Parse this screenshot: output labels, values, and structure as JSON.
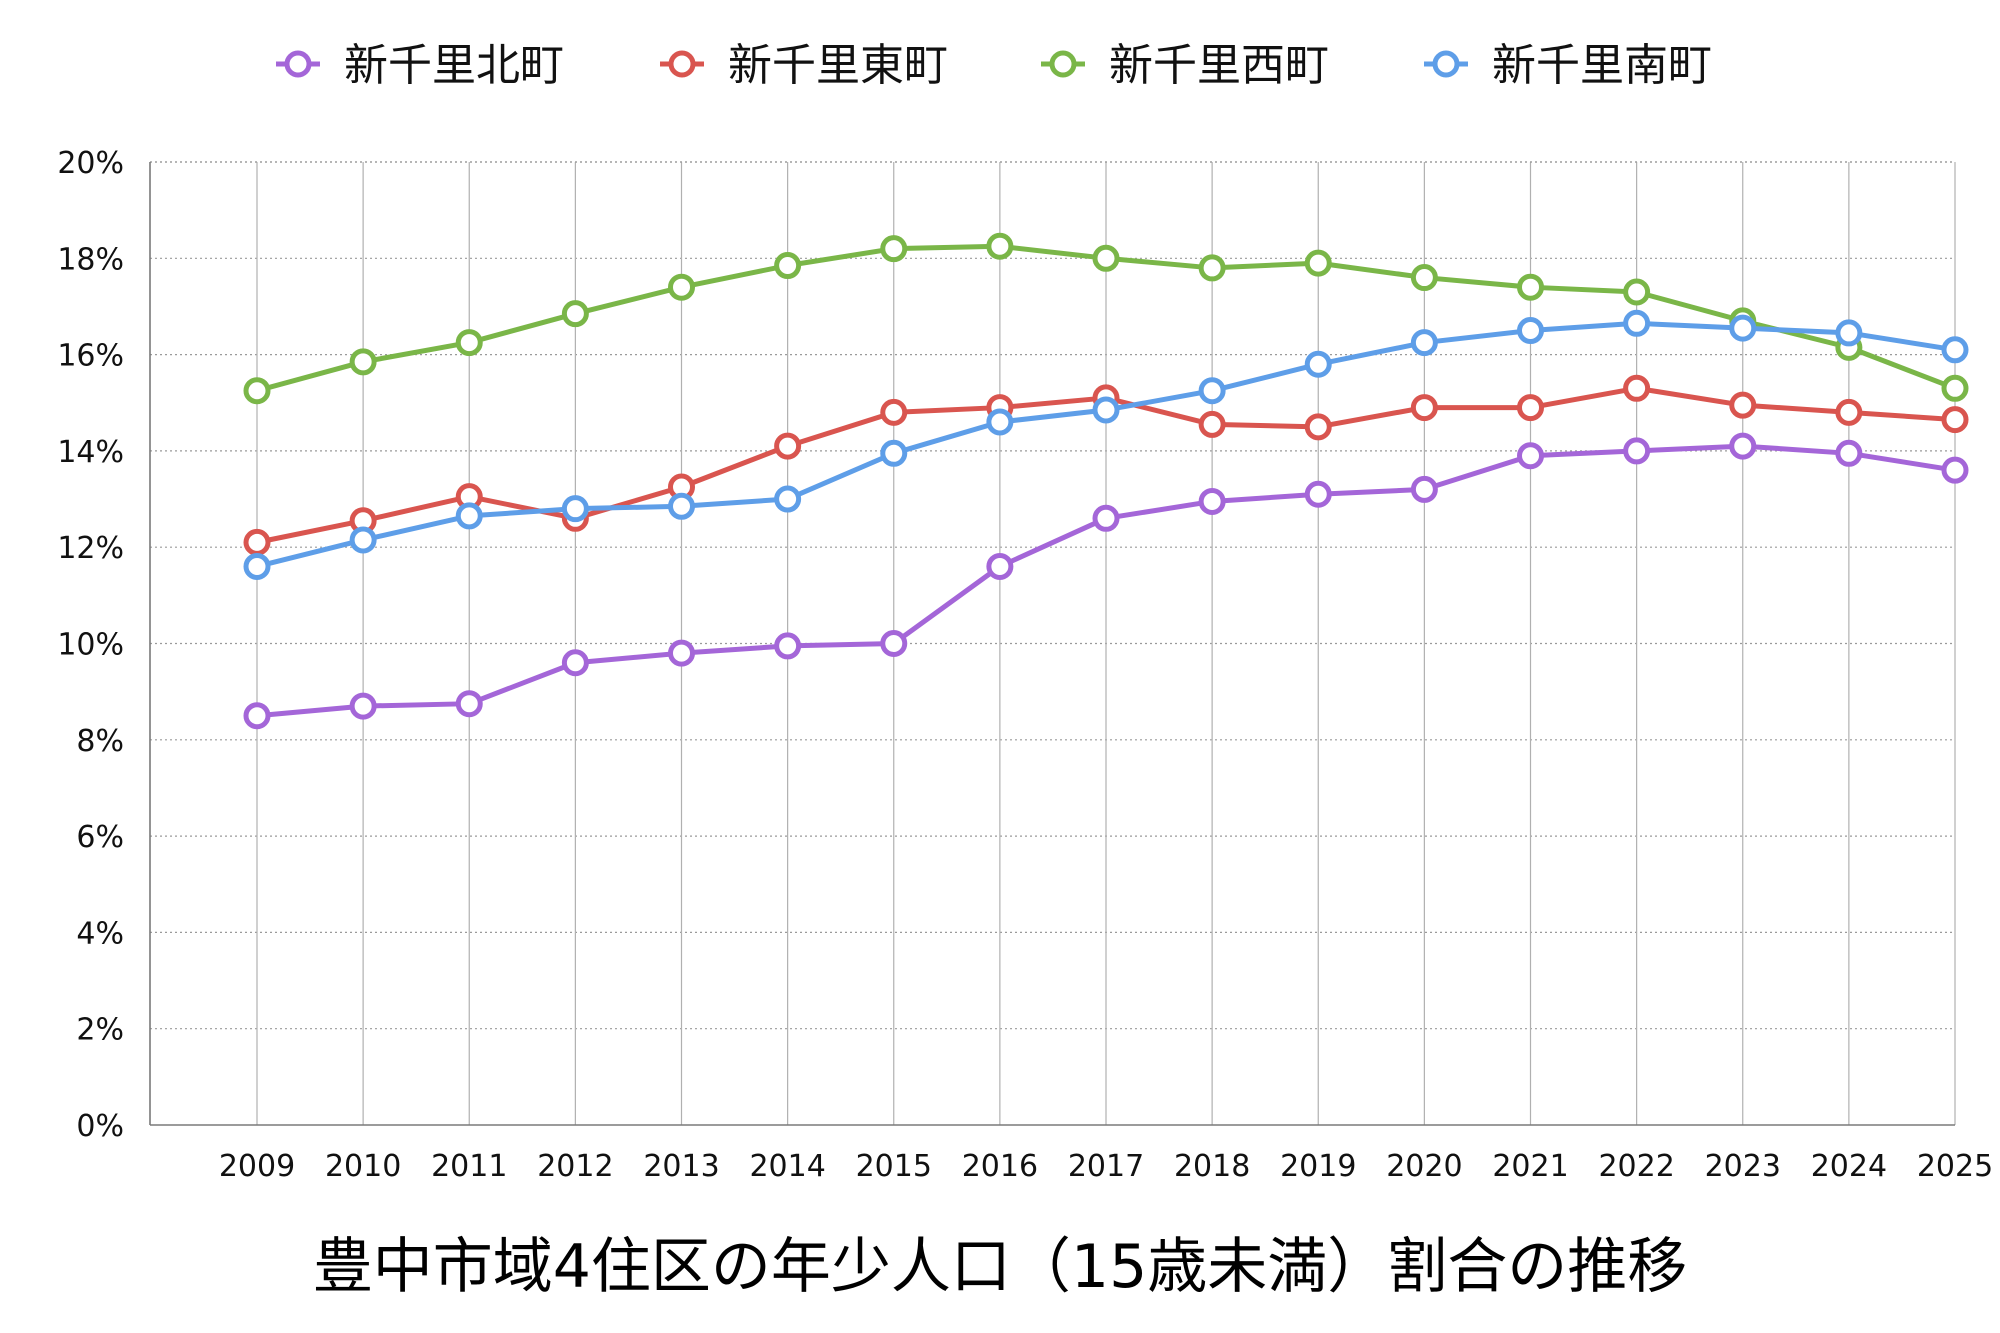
{
  "chart_data": {
    "type": "line",
    "title": "豊中市域4住区の年少人口（15歳未満）割合の推移",
    "xlabel": "",
    "ylabel": "",
    "categories": [
      "2009",
      "2010",
      "2011",
      "2012",
      "2013",
      "2014",
      "2015",
      "2016",
      "2017",
      "2018",
      "2019",
      "2020",
      "2021",
      "2022",
      "2023",
      "2024",
      "2025"
    ],
    "ylim": [
      0,
      20
    ],
    "yticks": [
      0,
      2,
      4,
      6,
      8,
      10,
      12,
      14,
      16,
      18,
      20
    ],
    "ytick_suffix": "%",
    "grid": true,
    "legend_position": "top",
    "series": [
      {
        "name": "新千里北町",
        "color": "#a466d8",
        "values": [
          8.5,
          8.7,
          8.75,
          9.6,
          9.8,
          9.95,
          10.0,
          11.6,
          12.6,
          12.95,
          13.1,
          13.2,
          13.9,
          14.0,
          14.1,
          13.95,
          13.6
        ]
      },
      {
        "name": "新千里東町",
        "color": "#d9554f",
        "values": [
          12.1,
          12.55,
          13.05,
          12.6,
          13.25,
          14.1,
          14.8,
          14.9,
          15.1,
          14.55,
          14.5,
          14.9,
          14.9,
          15.3,
          14.95,
          14.8,
          14.65
        ]
      },
      {
        "name": "新千里西町",
        "color": "#7ab648",
        "values": [
          15.25,
          15.85,
          16.25,
          16.85,
          17.4,
          17.85,
          18.2,
          18.25,
          18.0,
          17.8,
          17.9,
          17.6,
          17.4,
          17.3,
          16.7,
          16.15,
          15.3
        ]
      },
      {
        "name": "新千里南町",
        "color": "#5e9ee8",
        "values": [
          11.6,
          12.15,
          12.65,
          12.8,
          12.85,
          13.0,
          13.95,
          14.6,
          14.85,
          15.25,
          15.8,
          16.25,
          16.5,
          16.65,
          16.55,
          16.45,
          16.1
        ]
      }
    ]
  }
}
